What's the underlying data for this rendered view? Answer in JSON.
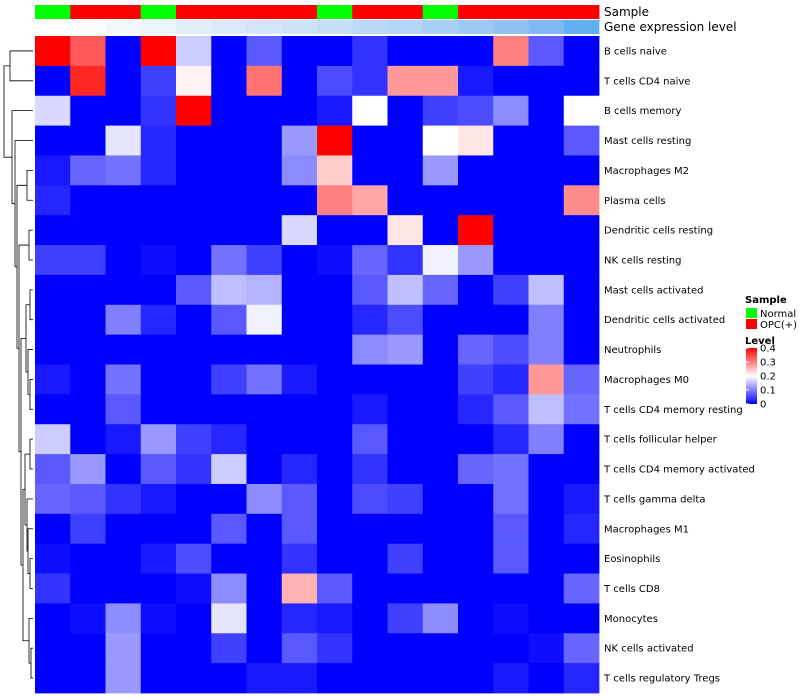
{
  "chart_data": {
    "type": "heatmap",
    "title": "",
    "annotation_tracks": [
      "Sample",
      "Gene expression level"
    ],
    "rows": [
      "B cells naive",
      "T cells CD4 naive",
      "B cells memory",
      "Mast cells resting",
      "Macrophages M2",
      "Plasma cells",
      "Dendritic cells resting",
      "NK cells resting",
      "Mast cells activated",
      "Dendritic cells activated",
      "Neutrophils",
      "Macrophages M0",
      "T cells CD4 memory resting",
      "T cells follicular helper",
      "T cells CD4 memory activated",
      "T cells gamma delta",
      "Macrophages M1",
      "Eosinophils",
      "T cells CD8",
      "Monocytes",
      "NK cells activated",
      "T cells regulatory  Tregs"
    ],
    "sample_groups": [
      "Normal",
      "OPC(+)",
      "OPC(+)",
      "Normal",
      "OPC(+)",
      "OPC(+)",
      "OPC(+)",
      "OPC(+)",
      "Normal",
      "OPC(+)",
      "OPC(+)",
      "Normal",
      "OPC(+)",
      "OPC(+)",
      "OPC(+)",
      "OPC(+)"
    ],
    "expression_level_colors": [
      "#ffffff",
      "#fbfcfe",
      "#f2f7fc",
      "#ebf3fc",
      "#e2effb",
      "#dbeafa",
      "#d3e6f9",
      "#cde3f9",
      "#c5dff8",
      "#bcdaf7",
      "#b3d5f7",
      "#a8cff6",
      "#9dc9f5",
      "#90c2f4",
      "#7fbaf3",
      "#62b0f1"
    ],
    "values": [
      [
        0.4,
        0.33,
        0.0,
        0.4,
        0.16,
        0.0,
        0.07,
        0.0,
        0.0,
        0.04,
        0.0,
        0.0,
        0.0,
        0.3,
        0.07,
        0.0
      ],
      [
        0.0,
        0.37,
        0.0,
        0.05,
        0.21,
        0.0,
        0.31,
        0.0,
        0.06,
        0.04,
        0.28,
        0.28,
        0.02,
        0.0,
        0.0,
        0.0
      ],
      [
        0.17,
        0.0,
        0.0,
        0.04,
        0.4,
        0.0,
        0.0,
        0.0,
        0.02,
        0.2,
        0.0,
        0.05,
        0.06,
        0.11,
        0.0,
        0.2
      ],
      [
        0.0,
        0.0,
        0.18,
        0.03,
        0.0,
        0.0,
        0.0,
        0.12,
        0.4,
        0.0,
        0.0,
        0.2,
        0.22,
        0.0,
        0.0,
        0.07
      ],
      [
        0.02,
        0.08,
        0.09,
        0.03,
        0.0,
        0.0,
        0.0,
        0.11,
        0.24,
        0.0,
        0.0,
        0.12,
        0.0,
        0.0,
        0.0,
        0.0
      ],
      [
        0.03,
        0.0,
        0.0,
        0.0,
        0.0,
        0.0,
        0.0,
        0.0,
        0.3,
        0.27,
        0.0,
        0.0,
        0.0,
        0.0,
        0.0,
        0.29
      ],
      [
        0.0,
        0.0,
        0.0,
        0.0,
        0.0,
        0.0,
        0.0,
        0.17,
        0.0,
        0.0,
        0.22,
        0.0,
        0.4,
        0.0,
        0.0,
        0.0
      ],
      [
        0.05,
        0.05,
        0.0,
        0.01,
        0.0,
        0.09,
        0.05,
        0.0,
        0.01,
        0.08,
        0.04,
        0.19,
        0.12,
        0.0,
        0.0,
        0.0
      ],
      [
        0.0,
        0.0,
        0.0,
        0.0,
        0.07,
        0.15,
        0.14,
        0.0,
        0.0,
        0.07,
        0.15,
        0.08,
        0.0,
        0.05,
        0.15,
        0.0
      ],
      [
        0.0,
        0.0,
        0.1,
        0.03,
        0.0,
        0.07,
        0.19,
        0.0,
        0.0,
        0.03,
        0.06,
        0.0,
        0.0,
        0.0,
        0.1,
        0.0
      ],
      [
        0.0,
        0.0,
        0.0,
        0.0,
        0.0,
        0.0,
        0.0,
        0.0,
        0.0,
        0.11,
        0.12,
        0.0,
        0.08,
        0.06,
        0.1,
        0.0
      ],
      [
        0.02,
        0.0,
        0.09,
        0.0,
        0.0,
        0.05,
        0.09,
        0.02,
        0.0,
        0.0,
        0.0,
        0.0,
        0.05,
        0.03,
        0.28,
        0.08
      ],
      [
        0.0,
        0.0,
        0.07,
        0.0,
        0.0,
        0.0,
        0.0,
        0.0,
        0.0,
        0.02,
        0.0,
        0.0,
        0.03,
        0.07,
        0.15,
        0.09
      ],
      [
        0.16,
        0.0,
        0.02,
        0.12,
        0.05,
        0.03,
        0.0,
        0.0,
        0.0,
        0.07,
        0.0,
        0.0,
        0.0,
        0.03,
        0.1,
        0.0
      ],
      [
        0.07,
        0.12,
        0.0,
        0.07,
        0.04,
        0.16,
        0.0,
        0.03,
        0.0,
        0.04,
        0.0,
        0.0,
        0.08,
        0.09,
        0.0,
        0.0
      ],
      [
        0.08,
        0.07,
        0.04,
        0.02,
        0.0,
        0.0,
        0.11,
        0.07,
        0.0,
        0.06,
        0.05,
        0.0,
        0.0,
        0.09,
        0.0,
        0.02
      ],
      [
        0.0,
        0.05,
        0.0,
        0.0,
        0.0,
        0.07,
        0.0,
        0.07,
        0.0,
        0.0,
        0.0,
        0.0,
        0.0,
        0.07,
        0.0,
        0.03
      ],
      [
        0.01,
        0.0,
        0.0,
        0.02,
        0.06,
        0.0,
        0.0,
        0.04,
        0.0,
        0.0,
        0.05,
        0.0,
        0.0,
        0.07,
        0.0,
        0.0
      ],
      [
        0.04,
        0.0,
        0.0,
        0.0,
        0.01,
        0.11,
        0.0,
        0.26,
        0.07,
        0.0,
        0.0,
        0.0,
        0.0,
        0.0,
        0.0,
        0.08
      ],
      [
        0.0,
        0.01,
        0.11,
        0.01,
        0.0,
        0.18,
        0.0,
        0.03,
        0.02,
        0.0,
        0.05,
        0.11,
        0.0,
        0.01,
        0.0,
        0.0
      ],
      [
        0.0,
        0.0,
        0.12,
        0.0,
        0.0,
        0.05,
        0.0,
        0.07,
        0.04,
        0.0,
        0.0,
        0.0,
        0.0,
        0.0,
        0.01,
        0.08
      ],
      [
        0.0,
        0.0,
        0.12,
        0.0,
        0.0,
        0.0,
        0.02,
        0.02,
        0.0,
        0.0,
        0.0,
        0.0,
        0.0,
        0.02,
        0.0,
        0.03
      ]
    ],
    "value_range": [
      0,
      0.4
    ],
    "legend": {
      "sample_title": "Sample",
      "sample_entries": [
        {
          "label": "Normal",
          "color": "#00ff00"
        },
        {
          "label": "OPC(+)",
          "color": "#ff0000"
        }
      ],
      "level_title": "Level",
      "level_ticks": [
        {
          "value": 0.4,
          "label": "0.4"
        },
        {
          "value": 0.3,
          "label": "0.3"
        },
        {
          "value": 0.2,
          "label": "0.2"
        },
        {
          "value": 0.1,
          "label": "0.1"
        },
        {
          "value": 0.0,
          "label": "0"
        }
      ],
      "placement": "right"
    },
    "colors": {
      "low": "#0000ff",
      "mid": "#ffffff",
      "high": "#ff0000",
      "dendrogram": "#000000"
    }
  }
}
